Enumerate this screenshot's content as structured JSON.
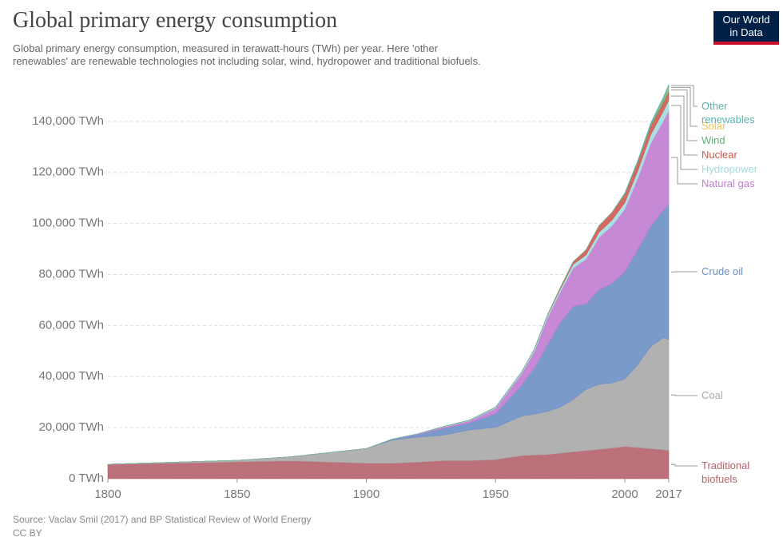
{
  "title": "Global primary energy consumption",
  "subtitle": "Global primary energy consumption, measured in terawatt-hours (TWh) per year. Here 'other renewables' are renewable technologies not including solar, wind, hydropower and traditional biofuels.",
  "logo": "Our World in Data",
  "source": "Source: Vaclav Smil (2017) and BP Statistical Review of World Energy",
  "license": "CC BY",
  "chart_data": {
    "type": "stacked-area",
    "x": [
      1800,
      1850,
      1870,
      1900,
      1910,
      1920,
      1930,
      1940,
      1950,
      1960,
      1965,
      1970,
      1975,
      1980,
      1985,
      1990,
      1995,
      2000,
      2005,
      2010,
      2015,
      2017
    ],
    "xlim": [
      1800,
      2017
    ],
    "xticks": [
      1800,
      1850,
      1900,
      1950,
      2000,
      2017
    ],
    "ylim": [
      0,
      155000
    ],
    "yticks": [
      {
        "value": 0,
        "label": "0 TWh"
      },
      {
        "value": 20000,
        "label": "20,000 TWh"
      },
      {
        "value": 40000,
        "label": "40,000 TWh"
      },
      {
        "value": 60000,
        "label": "60,000 TWh"
      },
      {
        "value": 80000,
        "label": "80,000 TWh"
      },
      {
        "value": 100000,
        "label": "100,000 TWh"
      },
      {
        "value": 120000,
        "label": "120,000 TWh"
      },
      {
        "value": 140000,
        "label": "140,000 TWh"
      }
    ],
    "grid": true,
    "series": [
      {
        "name": "Traditional biofuels",
        "color": "#b5616a",
        "values": [
          5560,
          6600,
          7000,
          6100,
          6100,
          6500,
          7100,
          7100,
          7500,
          9000,
          9300,
          9500,
          10000,
          10500,
          11000,
          11500,
          12000,
          12600,
          12200,
          11800,
          11300,
          11100
        ]
      },
      {
        "name": "Coal",
        "color": "#a8a8a8",
        "values": [
          100,
          600,
          1500,
          5700,
          9000,
          9800,
          10000,
          12000,
          12600,
          15500,
          16000,
          16800,
          18000,
          20500,
          24000,
          25500,
          25500,
          26500,
          32500,
          40000,
          44000,
          43400
        ]
      },
      {
        "name": "Crude oil",
        "color": "#6b8fc6",
        "values": [
          0,
          0,
          0,
          0,
          400,
          1000,
          2600,
          2800,
          5400,
          12000,
          18000,
          26000,
          33000,
          36500,
          33500,
          37000,
          39000,
          42000,
          45000,
          47000,
          50000,
          53000
        ]
      },
      {
        "name": "Natural gas",
        "color": "#c07cd0",
        "values": [
          0,
          0,
          0,
          0,
          0,
          200,
          600,
          800,
          2100,
          4500,
          6500,
          10500,
          12000,
          15000,
          17500,
          20500,
          22500,
          24500,
          28000,
          32500,
          35000,
          36700
        ]
      },
      {
        "name": "Hydropower",
        "color": "#a3dbe0",
        "values": [
          0,
          0,
          0,
          0,
          0,
          100,
          200,
          300,
          400,
          700,
          900,
          1000,
          1200,
          1500,
          1700,
          2000,
          2300,
          2600,
          2900,
          3400,
          3900,
          4100
        ]
      },
      {
        "name": "Nuclear",
        "color": "#d0584e",
        "values": [
          0,
          0,
          0,
          0,
          0,
          0,
          0,
          0,
          0,
          0,
          100,
          200,
          600,
          1000,
          2000,
          2600,
          3000,
          3300,
          3400,
          3400,
          3200,
          3300
        ]
      },
      {
        "name": "Wind",
        "color": "#5fae7a",
        "values": [
          0,
          0,
          0,
          0,
          0,
          0,
          0,
          0,
          0,
          0,
          0,
          0,
          0,
          0,
          0,
          10,
          20,
          60,
          150,
          500,
          1100,
          1400
        ]
      },
      {
        "name": "Solar",
        "color": "#f3c35a",
        "values": [
          0,
          0,
          0,
          0,
          0,
          0,
          0,
          0,
          0,
          0,
          0,
          0,
          0,
          0,
          0,
          0,
          0,
          5,
          10,
          50,
          350,
          600
        ]
      },
      {
        "name": "Other renewables",
        "color": "#56b3b0",
        "values": [
          0,
          0,
          0,
          0,
          0,
          0,
          0,
          0,
          0,
          0,
          0,
          0,
          0,
          0,
          0,
          0,
          0,
          400,
          500,
          650,
          800,
          900
        ]
      }
    ]
  }
}
